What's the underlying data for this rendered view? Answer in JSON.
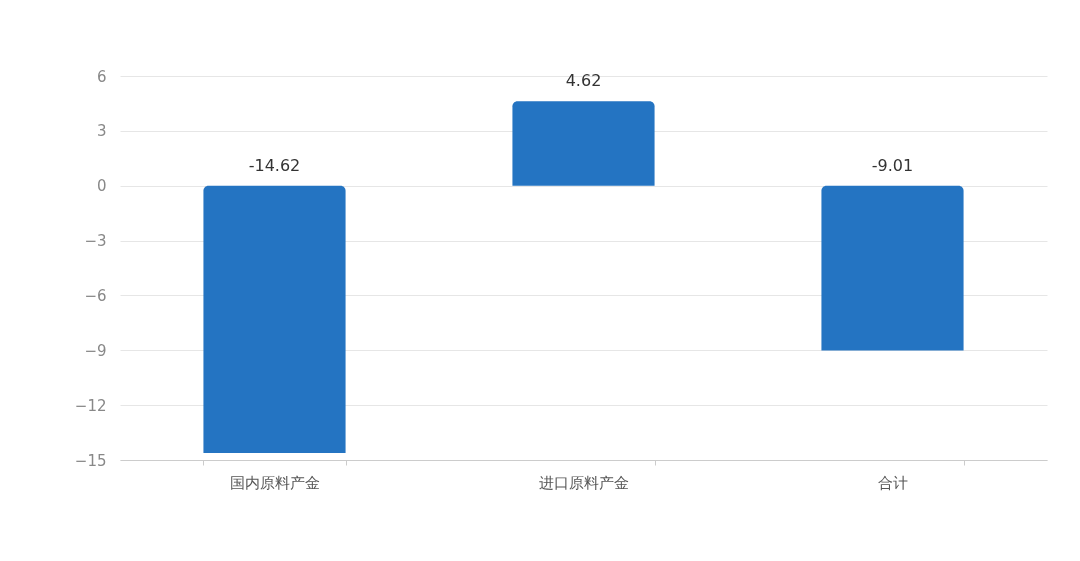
{
  "chart_data": {
    "type": "bar",
    "categories": [
      "国内原料产金",
      "进口原料产金",
      "合计"
    ],
    "values": [
      -14.62,
      4.62,
      -9.01
    ],
    "color": "#2474c2",
    "ylim": [
      -15,
      6
    ],
    "yticks": [
      -15,
      -12,
      -9,
      -6,
      -3,
      0,
      3,
      6
    ],
    "grid": "y",
    "data_labels": true
  }
}
